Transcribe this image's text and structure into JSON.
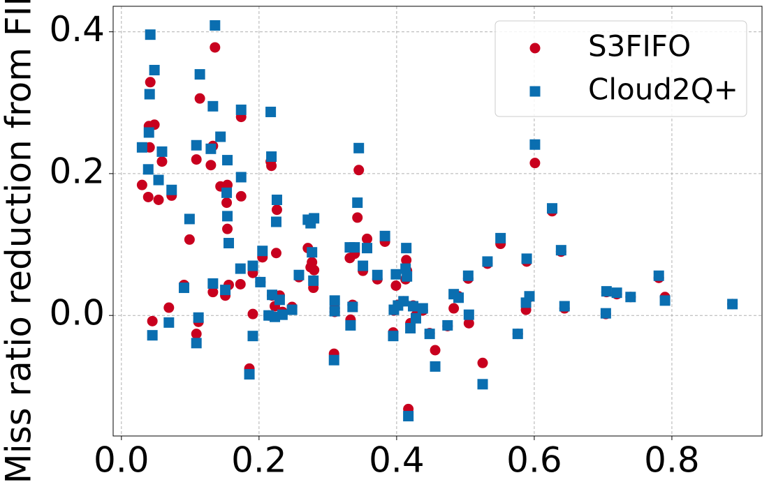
{
  "chart_data": {
    "type": "scatter",
    "y_label": "Miss ratio reduction from FIFO",
    "xlim": [
      -0.012,
      0.931
    ],
    "ylim": [
      -0.17,
      0.436
    ],
    "xticks": [
      {
        "value": 0,
        "label": "0.0"
      },
      0.2,
      0.4,
      0.6,
      0.8
    ],
    "yticks": [
      {
        "value": 0,
        "label": "0.0"
      },
      0.2,
      0.4
    ],
    "grid": true,
    "legend": "upper right",
    "x": [
      0.03,
      0.039,
      0.04,
      0.041,
      0.042,
      0.045,
      0.048,
      0.054,
      0.059,
      0.069,
      0.073,
      0.091,
      0.099,
      0.109,
      0.109,
      0.112,
      0.114,
      0.13,
      0.133,
      0.133,
      0.136,
      0.144,
      0.151,
      0.153,
      0.154,
      0.154,
      0.156,
      0.173,
      0.174,
      0.174,
      0.186,
      0.191,
      0.191,
      0.202,
      0.205,
      0.214,
      0.217,
      0.218,
      0.219,
      0.223,
      0.225,
      0.226,
      0.23,
      0.234,
      0.248,
      0.258,
      0.271,
      0.275,
      0.277,
      0.279,
      0.28,
      0.309,
      0.31,
      0.31,
      0.332,
      0.333,
      0.336,
      0.339,
      0.343,
      0.345,
      0.351,
      0.357,
      0.372,
      0.383,
      0.395,
      0.396,
      0.399,
      0.402,
      0.41,
      0.413,
      0.414,
      0.415,
      0.417,
      0.42,
      0.424,
      0.428,
      0.438,
      0.448,
      0.456,
      0.474,
      0.483,
      0.49,
      0.504,
      0.505,
      0.525,
      0.532,
      0.551,
      0.576,
      0.588,
      0.589,
      0.593,
      0.601,
      0.626,
      0.639,
      0.644,
      0.704,
      0.705,
      0.72,
      0.74,
      0.781,
      0.79,
      0.888
    ],
    "series": [
      {
        "name": "S3FIFO",
        "color": "#c8001e",
        "marker": "circle",
        "values": [
          0.184,
          0.167,
          0.267,
          0.237,
          0.329,
          -0.008,
          0.269,
          0.163,
          0.217,
          0.011,
          0.169,
          0.043,
          0.107,
          -0.026,
          0.22,
          -0.009,
          0.306,
          0.212,
          0.033,
          0.239,
          0.378,
          0.182,
          0.028,
          0.159,
          0.122,
          0.184,
          0.043,
          0.044,
          0.28,
          0.168,
          -0.075,
          0.06,
          0.002,
          0.047,
          0.082,
          0,
          0.217,
          0.211,
          0.028,
          0.013,
          0.088,
          0.149,
          0.028,
          0.005,
          0.012,
          0.054,
          0.095,
          0.068,
          0.075,
          0.039,
          0.064,
          -0.054,
          0.01,
          0.005,
          0.081,
          -0.006,
          0.015,
          0.087,
          0.138,
          0.205,
          0.063,
          0.108,
          0.051,
          0.104,
          -0.024,
          0.007,
          0.042,
          0.015,
          0.02,
          0.051,
          0.078,
          0.063,
          -0.132,
          -0.011,
          0.014,
          0,
          0.007,
          -0.025,
          -0.049,
          -0.015,
          0.01,
          0.027,
          0.052,
          -0.011,
          -0.067,
          0.073,
          0.101,
          -0.026,
          0.008,
          0.076,
          0.026,
          0.215,
          0.147,
          0.09,
          0.01,
          0.002,
          0.033,
          0.03,
          0.026,
          0.053,
          0.026,
          0.016
        ]
      },
      {
        "name": "Cloud2Q+",
        "color": "#0a6eb0",
        "marker": "square",
        "values": [
          0.237,
          0.206,
          0.258,
          0.312,
          0.396,
          -0.028,
          0.346,
          0.191,
          0.231,
          -0.01,
          0.177,
          0.039,
          0.136,
          -0.039,
          0.24,
          -0.003,
          0.34,
          0.235,
          0.045,
          0.295,
          0.409,
          0.252,
          0.036,
          0.173,
          0.14,
          0.219,
          0.102,
          0.066,
          0.29,
          0.195,
          -0.083,
          0.07,
          -0.029,
          0.047,
          0.091,
          0,
          0.287,
          0.224,
          0.029,
          -0.002,
          0.132,
          0.163,
          0.022,
          0.001,
          0.008,
          0.057,
          0.135,
          0.13,
          0.089,
          0.049,
          0.137,
          -0.063,
          0.021,
          0.006,
          0.096,
          -0.014,
          0.012,
          0.096,
          0.159,
          0.236,
          0.07,
          0.095,
          0.057,
          0.112,
          -0.029,
          0.008,
          0.058,
          0.014,
          0.02,
          0.066,
          0.095,
          0.055,
          -0.142,
          -0.018,
          0.013,
          -0.004,
          0.01,
          -0.026,
          -0.072,
          -0.014,
          0.03,
          0.025,
          0.056,
          0.001,
          -0.097,
          0.076,
          0.109,
          -0.026,
          0.018,
          0.08,
          0.027,
          0.241,
          0.151,
          0.092,
          0.013,
          0.003,
          0.034,
          0.032,
          0.026,
          0.056,
          0.021,
          0.016
        ]
      }
    ]
  }
}
